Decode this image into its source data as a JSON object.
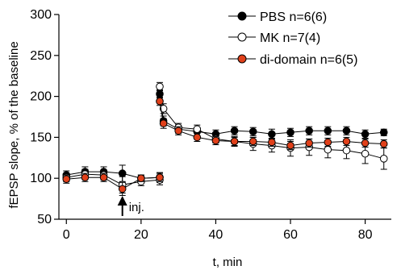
{
  "chart_data": {
    "type": "line",
    "title": "",
    "xlabel": "t, min",
    "ylabel": "fEPSP slope, % of the baseline",
    "xlim": [
      -2,
      87
    ],
    "ylim": [
      50,
      300
    ],
    "xticks": [
      0,
      20,
      40,
      60,
      80
    ],
    "yticks": [
      50,
      100,
      150,
      200,
      250,
      300
    ],
    "grid": false,
    "legend_position": "top-right",
    "annotation": {
      "text": "inj.",
      "x": 15
    },
    "series": [
      {
        "name": "PBS n=6(6)",
        "marker": "filled-black-circle",
        "color": "#000000",
        "fill": "#000000",
        "segments": [
          [
            {
              "x": 0,
              "y": 104,
              "err": 5
            },
            {
              "x": 5,
              "y": 108,
              "err": 6
            },
            {
              "x": 10,
              "y": 108,
              "err": 6
            },
            {
              "x": 15,
              "y": 106,
              "err": 10
            },
            {
              "x": 20,
              "y": 100,
              "err": 4
            },
            {
              "x": 25,
              "y": 101,
              "err": 6
            }
          ],
          [
            {
              "x": 25,
              "y": 203,
              "err": 5
            },
            {
              "x": 26,
              "y": 170,
              "err": 6
            },
            {
              "x": 30,
              "y": 160,
              "err": 5
            },
            {
              "x": 35,
              "y": 157,
              "err": 5
            },
            {
              "x": 40,
              "y": 154,
              "err": 5
            },
            {
              "x": 45,
              "y": 158,
              "err": 5
            },
            {
              "x": 50,
              "y": 157,
              "err": 5
            },
            {
              "x": 55,
              "y": 154,
              "err": 6
            },
            {
              "x": 60,
              "y": 156,
              "err": 5
            },
            {
              "x": 65,
              "y": 158,
              "err": 5
            },
            {
              "x": 70,
              "y": 158,
              "err": 5
            },
            {
              "x": 75,
              "y": 158,
              "err": 5
            },
            {
              "x": 80,
              "y": 154,
              "err": 5
            },
            {
              "x": 85,
              "y": 156,
              "err": 4
            }
          ]
        ]
      },
      {
        "name": "MK n=7(4)",
        "marker": "open-circle",
        "color": "#000000",
        "fill": "#ffffff",
        "segments": [
          [
            {
              "x": 0,
              "y": 101,
              "err": 5
            },
            {
              "x": 5,
              "y": 105,
              "err": 6
            },
            {
              "x": 10,
              "y": 104,
              "err": 6
            },
            {
              "x": 15,
              "y": 92,
              "err": 10
            },
            {
              "x": 20,
              "y": 96,
              "err": 5
            },
            {
              "x": 25,
              "y": 98,
              "err": 6
            }
          ],
          [
            {
              "x": 25,
              "y": 212,
              "err": 5
            },
            {
              "x": 26,
              "y": 185,
              "err": 6
            },
            {
              "x": 30,
              "y": 162,
              "err": 5
            },
            {
              "x": 35,
              "y": 160,
              "err": 5
            },
            {
              "x": 40,
              "y": 148,
              "err": 5
            },
            {
              "x": 45,
              "y": 145,
              "err": 6
            },
            {
              "x": 50,
              "y": 142,
              "err": 8
            },
            {
              "x": 55,
              "y": 140,
              "err": 8
            },
            {
              "x": 60,
              "y": 137,
              "err": 10
            },
            {
              "x": 65,
              "y": 138,
              "err": 10
            },
            {
              "x": 70,
              "y": 135,
              "err": 10
            },
            {
              "x": 75,
              "y": 134,
              "err": 10
            },
            {
              "x": 80,
              "y": 130,
              "err": 12
            },
            {
              "x": 85,
              "y": 124,
              "err": 13
            }
          ]
        ]
      },
      {
        "name": "di-domain n=6(5)",
        "marker": "orange-circle",
        "color": "#000000",
        "fill": "#e0401a",
        "segments": [
          [
            {
              "x": 0,
              "y": 99,
              "err": 5
            },
            {
              "x": 5,
              "y": 101,
              "err": 5
            },
            {
              "x": 10,
              "y": 101,
              "err": 5
            },
            {
              "x": 15,
              "y": 87,
              "err": 8
            },
            {
              "x": 20,
              "y": 100,
              "err": 4
            },
            {
              "x": 25,
              "y": 101,
              "err": 5
            }
          ],
          [
            {
              "x": 25,
              "y": 194,
              "err": 5
            },
            {
              "x": 26,
              "y": 167,
              "err": 6
            },
            {
              "x": 30,
              "y": 158,
              "err": 5
            },
            {
              "x": 35,
              "y": 150,
              "err": 5
            },
            {
              "x": 40,
              "y": 146,
              "err": 5
            },
            {
              "x": 45,
              "y": 145,
              "err": 5
            },
            {
              "x": 50,
              "y": 145,
              "err": 5
            },
            {
              "x": 55,
              "y": 144,
              "err": 5
            },
            {
              "x": 60,
              "y": 140,
              "err": 5
            },
            {
              "x": 65,
              "y": 143,
              "err": 5
            },
            {
              "x": 70,
              "y": 144,
              "err": 5
            },
            {
              "x": 75,
              "y": 145,
              "err": 5
            },
            {
              "x": 80,
              "y": 143,
              "err": 5
            },
            {
              "x": 85,
              "y": 142,
              "err": 5
            }
          ]
        ]
      }
    ]
  }
}
